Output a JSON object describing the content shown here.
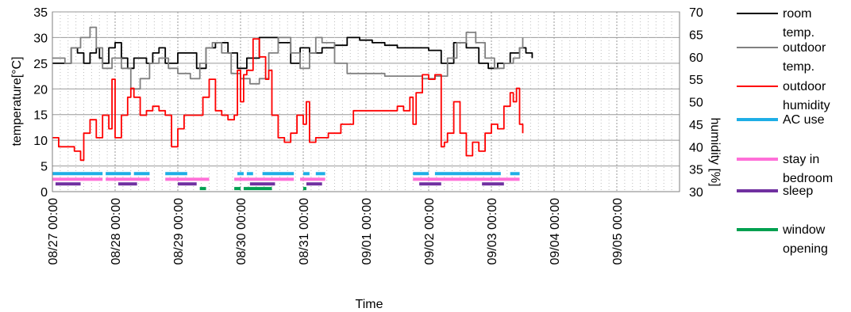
{
  "chart_data": {
    "type": "line",
    "xlabel": "Time",
    "ylabel_left": "temperature[°C]",
    "ylabel_right": "humidity [%]",
    "ylim_left": [
      0,
      35
    ],
    "yticks_left": [
      "0",
      "5",
      "10",
      "15",
      "20",
      "25",
      "30",
      "35"
    ],
    "ylim_right": [
      30,
      70
    ],
    "yticks_right": [
      "30",
      "35",
      "40",
      "45",
      "50",
      "55",
      "60",
      "65",
      "70"
    ],
    "x_range_days": [
      0,
      10
    ],
    "x_ticks": [
      "08/27 00:00",
      "08/28 00:00",
      "08/29 00:00",
      "08/30 00:00",
      "08/31 00:00",
      "09/01 00:00",
      "09/02 00:00",
      "09/03 00:00",
      "09/04 00:00",
      "09/05 00:00"
    ],
    "grid": true,
    "legend_placement": "right",
    "series": [
      {
        "name": "room temp.",
        "color": "#000000",
        "axis": "left",
        "x": [
          0,
          0.2,
          0.3,
          0.4,
          0.5,
          0.6,
          0.7,
          0.75,
          0.8,
          0.9,
          1.0,
          1.1,
          1.2,
          1.3,
          1.5,
          1.6,
          1.7,
          1.8,
          2.0,
          2.15,
          2.3,
          2.45,
          2.6,
          2.8,
          2.95,
          3.1,
          3.3,
          3.45,
          3.6,
          3.8,
          3.95,
          4.1,
          4.3,
          4.5,
          4.7,
          4.9,
          5.1,
          5.3,
          5.5,
          5.7,
          5.8,
          6.0,
          6.2,
          6.4,
          6.6,
          6.8,
          6.95,
          7.1,
          7.3,
          7.45,
          7.55,
          7.65
        ],
        "y": [
          25,
          25,
          28,
          27,
          25,
          27,
          28,
          26,
          25,
          28,
          29,
          26,
          24,
          26,
          25,
          27,
          28,
          25,
          27,
          27,
          24,
          28,
          29,
          27,
          24,
          26,
          30,
          30,
          29,
          25,
          28,
          27,
          28,
          28.5,
          30,
          29.5,
          29,
          28.5,
          28,
          28,
          28,
          27.5,
          25,
          29,
          28,
          25,
          24,
          25,
          27,
          28,
          27,
          26
        ]
      },
      {
        "name": "outdoor temp.",
        "color": "#808080",
        "axis": "left",
        "x": [
          0,
          0.2,
          0.3,
          0.45,
          0.6,
          0.7,
          0.8,
          0.95,
          1.1,
          1.25,
          1.4,
          1.55,
          1.7,
          1.85,
          2.0,
          2.2,
          2.35,
          2.45,
          2.55,
          2.7,
          2.85,
          3.0,
          3.15,
          3.3,
          3.45,
          3.6,
          3.8,
          3.95,
          4.1,
          4.2,
          4.3,
          4.5,
          4.7,
          4.9,
          5.1,
          5.3,
          5.5,
          5.7,
          5.9,
          6.1,
          6.3,
          6.45,
          6.6,
          6.75,
          6.9,
          7.05,
          7.2,
          7.35,
          7.45,
          7.5
        ],
        "y": [
          26,
          25,
          28,
          30,
          32,
          28,
          24,
          26,
          24,
          20,
          22,
          25,
          26,
          24,
          23,
          22,
          25,
          28,
          29,
          27,
          23,
          22,
          21,
          22,
          27,
          30,
          27,
          24,
          27,
          30,
          29,
          25,
          23,
          23,
          23,
          22.5,
          22.5,
          22.5,
          22,
          22.5,
          26,
          29,
          31,
          29,
          26,
          24,
          25,
          26,
          28,
          30
        ]
      },
      {
        "name": "outdoor humidity",
        "color": "#ff0000",
        "axis": "right",
        "x": [
          0,
          0.1,
          0.2,
          0.35,
          0.45,
          0.5,
          0.6,
          0.7,
          0.8,
          0.9,
          0.95,
          1.0,
          1.1,
          1.2,
          1.25,
          1.3,
          1.4,
          1.5,
          1.6,
          1.7,
          1.8,
          1.9,
          2.0,
          2.1,
          2.2,
          2.3,
          2.4,
          2.5,
          2.6,
          2.7,
          2.8,
          2.9,
          2.95,
          3.0,
          3.05,
          3.1,
          3.2,
          3.3,
          3.4,
          3.45,
          3.5,
          3.6,
          3.7,
          3.8,
          3.9,
          4.0,
          4.05,
          4.1,
          4.15,
          4.2,
          4.3,
          4.4,
          4.6,
          4.8,
          5.0,
          5.2,
          5.5,
          5.6,
          5.7,
          5.75,
          5.8,
          5.9,
          6.0,
          6.1,
          6.2,
          6.25,
          6.3,
          6.4,
          6.5,
          6.6,
          6.7,
          6.8,
          6.9,
          7.0,
          7.1,
          7.2,
          7.3,
          7.35,
          7.4,
          7.45,
          7.5
        ],
        "y": [
          42,
          40,
          40,
          39,
          37,
          43,
          46,
          42,
          47,
          44,
          55,
          42,
          47,
          51,
          53,
          51,
          47,
          48,
          49,
          48,
          47,
          40,
          44,
          47,
          47,
          47,
          51,
          55,
          48,
          47,
          46,
          47,
          57,
          50,
          56,
          57,
          64,
          60,
          55,
          57,
          47,
          42,
          41,
          43,
          47,
          45,
          50,
          41,
          41,
          42,
          42,
          43,
          45,
          48,
          48,
          48,
          49,
          48,
          51,
          45,
          52,
          56,
          55,
          56,
          40,
          41,
          43,
          50,
          43,
          38,
          41,
          39,
          43,
          45,
          44,
          49,
          52,
          50,
          53,
          45,
          43
        ]
      },
      {
        "name": "AC use",
        "color": "#1eaee6",
        "axis": "left",
        "segments_level": 3.5,
        "segments": [
          [
            0,
            0.8
          ],
          [
            0.85,
            1.25
          ],
          [
            1.3,
            1.55
          ],
          [
            1.8,
            2.15
          ],
          [
            2.95,
            3.05
          ],
          [
            3.1,
            3.2
          ],
          [
            3.35,
            3.85
          ],
          [
            4.0,
            4.1
          ],
          [
            4.2,
            4.35
          ],
          [
            5.75,
            6.0
          ],
          [
            6.1,
            7.15
          ],
          [
            7.3,
            7.45
          ]
        ]
      },
      {
        "name": "stay in bedroom",
        "color": "#ff6fd8",
        "axis": "left",
        "segments_level": 2.4,
        "segments": [
          [
            0,
            0.8
          ],
          [
            0.85,
            1.55
          ],
          [
            1.8,
            2.5
          ],
          [
            2.9,
            3.85
          ],
          [
            3.95,
            4.35
          ],
          [
            5.75,
            7.45
          ]
        ]
      },
      {
        "name": "sleep",
        "color": "#7030a0",
        "axis": "left",
        "segments_level": 1.5,
        "segments": [
          [
            0.05,
            0.45
          ],
          [
            1.05,
            1.35
          ],
          [
            2.0,
            2.3
          ],
          [
            3.15,
            3.55
          ],
          [
            4.05,
            4.3
          ],
          [
            5.85,
            6.2
          ],
          [
            6.85,
            7.2
          ]
        ]
      },
      {
        "name": "window opening",
        "color": "#00a050",
        "axis": "left",
        "segments_level": 0.6,
        "segments": [
          [
            2.35,
            2.45
          ],
          [
            2.9,
            3.0
          ],
          [
            3.05,
            3.5
          ],
          [
            4.0,
            4.05
          ]
        ]
      }
    ]
  }
}
